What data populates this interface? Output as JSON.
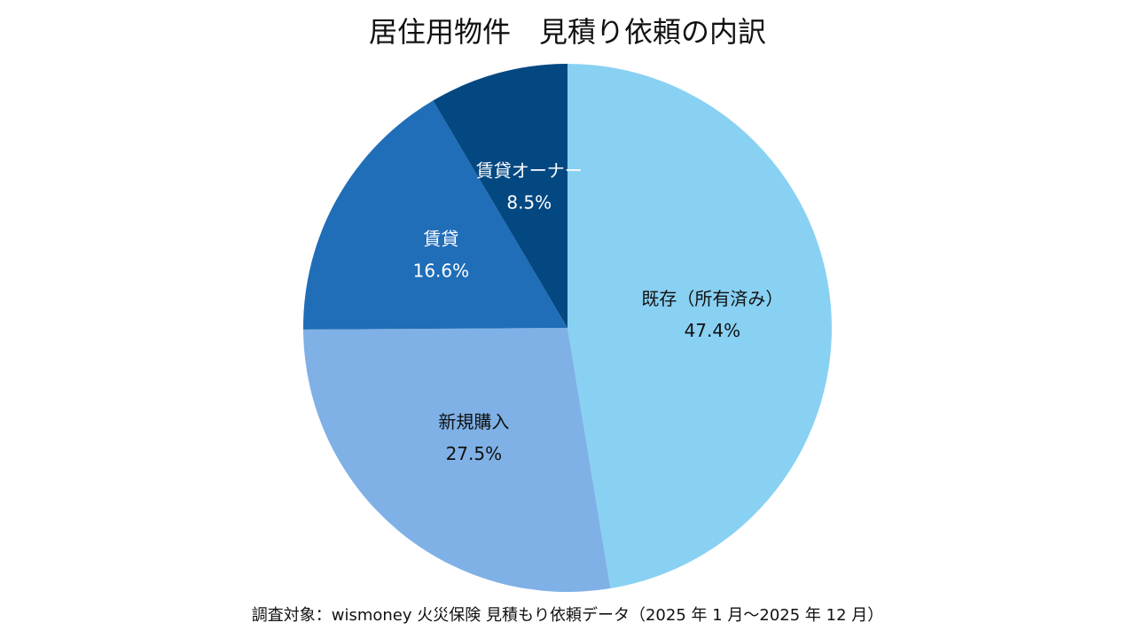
{
  "chart_data": {
    "type": "pie",
    "title": "居住用物件　見積り依頼の内訳",
    "categories": [
      "既存（所有済み）",
      "新規購入",
      "賃貸",
      "賃貸オーナー"
    ],
    "values": [
      47.4,
      27.5,
      16.6,
      8.5
    ],
    "value_labels": [
      "47.4%",
      "27.5%",
      "16.6%",
      "8.5%"
    ],
    "colors": [
      "#89d1f3",
      "#7fb1e6",
      "#206db8",
      "#044882"
    ],
    "label_colors": [
      "#111111",
      "#111111",
      "#ffffff",
      "#ffffff"
    ],
    "source": "調査対象：wismoney 火災保険 見積もり依頼データ（2025 年 1 月～2025 年 12 月）"
  }
}
